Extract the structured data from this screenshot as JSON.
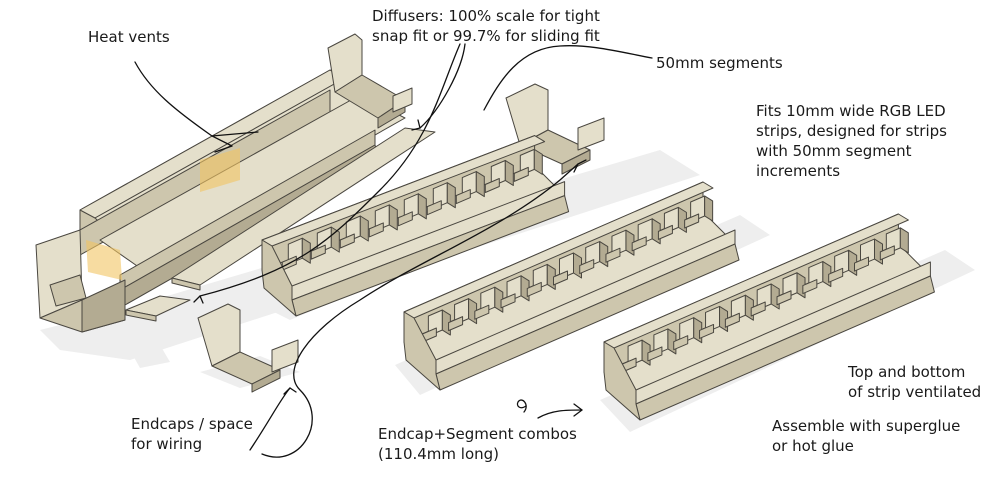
{
  "annotations": {
    "heat_vents": [
      "Heat vents"
    ],
    "diffusers": [
      "Diffusers: 100% scale for tight",
      "snap fit or 99.7% for sliding fit"
    ],
    "segments": [
      "50mm segments"
    ],
    "fits": [
      "Fits 10mm wide RGB LED",
      "strips, designed for strips",
      "with 50mm segment",
      "increments"
    ],
    "endcaps": [
      "Endcaps / space",
      "for wiring"
    ],
    "combos": [
      "Endcap+Segment combos",
      "(110.4mm long)"
    ],
    "ventilated": [
      "Top and bottom",
      "of strip ventilated"
    ],
    "assemble": [
      "Assemble with superglue",
      "or hot glue"
    ]
  },
  "colors": {
    "part_fill": "#e4dfcb",
    "part_shade": "#cdc6ad",
    "part_dark": "#b3ab92",
    "part_edge": "#4a4740",
    "shadow": "#eeeeee",
    "highlight": "#f2c563",
    "ink": "#111111"
  }
}
